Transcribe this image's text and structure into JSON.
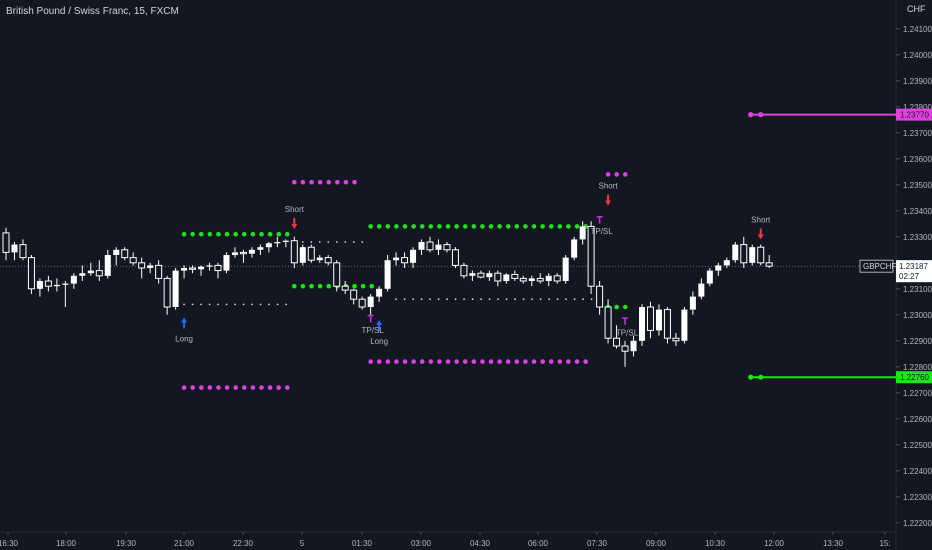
{
  "header": {
    "title": "British Pound / Swiss Franc, 15, FXCM",
    "currency": "CHF"
  },
  "colors": {
    "background": "#131722",
    "candle": "#ffffff",
    "green_level": "#19e619",
    "magenta_level": "#e040e0",
    "long_arrow": "#2962ff",
    "short_arrow": "#f23645",
    "tpsl": "#c030e0",
    "white_dots": "#d1d4dc"
  },
  "chart_data": {
    "type": "candlestick",
    "symbol": "GBPCHF",
    "interval": "15",
    "x_ticks": [
      "16:30",
      "18:00",
      "19:30",
      "21:00",
      "22:30",
      "5",
      "01:30",
      "03:00",
      "04:30",
      "06:00",
      "07:30",
      "09:00",
      "10:30",
      "12:00",
      "13:30",
      "15:"
    ],
    "y_ticks": [
      "1.24100",
      "1.24000",
      "1.23900",
      "1.23800",
      "1.23700",
      "1.23600",
      "1.23500",
      "1.23400",
      "1.23300",
      "1.23200",
      "1.23100",
      "1.23000",
      "1.22900",
      "1.22800",
      "1.22700",
      "1.22600",
      "1.22500",
      "1.22400",
      "1.22300",
      "1.22200"
    ],
    "ylim": [
      1.2218,
      1.2418
    ],
    "candles": [
      {
        "o": 1.23315,
        "h": 1.23335,
        "l": 1.2321,
        "c": 1.2324
      },
      {
        "o": 1.2324,
        "h": 1.2328,
        "l": 1.2321,
        "c": 1.2327
      },
      {
        "o": 1.2327,
        "h": 1.2329,
        "l": 1.2321,
        "c": 1.2322
      },
      {
        "o": 1.2322,
        "h": 1.2323,
        "l": 1.2308,
        "c": 1.231
      },
      {
        "o": 1.231,
        "h": 1.2314,
        "l": 1.2307,
        "c": 1.2313
      },
      {
        "o": 1.2313,
        "h": 1.2315,
        "l": 1.2309,
        "c": 1.2311
      },
      {
        "o": 1.2311,
        "h": 1.2314,
        "l": 1.2309,
        "c": 1.23115
      },
      {
        "o": 1.23115,
        "h": 1.2313,
        "l": 1.2303,
        "c": 1.2312
      },
      {
        "o": 1.2312,
        "h": 1.2316,
        "l": 1.231,
        "c": 1.2315
      },
      {
        "o": 1.2315,
        "h": 1.2319,
        "l": 1.2313,
        "c": 1.2316
      },
      {
        "o": 1.2316,
        "h": 1.232,
        "l": 1.2315,
        "c": 1.2317
      },
      {
        "o": 1.2317,
        "h": 1.2321,
        "l": 1.2313,
        "c": 1.2315
      },
      {
        "o": 1.2315,
        "h": 1.2325,
        "l": 1.2314,
        "c": 1.2323
      },
      {
        "o": 1.2323,
        "h": 1.2326,
        "l": 1.2319,
        "c": 1.2325
      },
      {
        "o": 1.2325,
        "h": 1.2326,
        "l": 1.2321,
        "c": 1.2322
      },
      {
        "o": 1.2322,
        "h": 1.2324,
        "l": 1.2319,
        "c": 1.232
      },
      {
        "o": 1.232,
        "h": 1.2322,
        "l": 1.2314,
        "c": 1.2318
      },
      {
        "o": 1.2318,
        "h": 1.232,
        "l": 1.2316,
        "c": 1.2319
      },
      {
        "o": 1.2319,
        "h": 1.2321,
        "l": 1.2312,
        "c": 1.2314
      },
      {
        "o": 1.2314,
        "h": 1.2315,
        "l": 1.23,
        "c": 1.2303
      },
      {
        "o": 1.2303,
        "h": 1.2318,
        "l": 1.2302,
        "c": 1.2317
      },
      {
        "o": 1.2317,
        "h": 1.2319,
        "l": 1.2314,
        "c": 1.2318
      },
      {
        "o": 1.2318,
        "h": 1.2319,
        "l": 1.2316,
        "c": 1.23175
      },
      {
        "o": 1.23175,
        "h": 1.2319,
        "l": 1.2315,
        "c": 1.23185
      },
      {
        "o": 1.23185,
        "h": 1.232,
        "l": 1.2317,
        "c": 1.2319
      },
      {
        "o": 1.2319,
        "h": 1.232,
        "l": 1.2314,
        "c": 1.2317
      },
      {
        "o": 1.2317,
        "h": 1.2324,
        "l": 1.2316,
        "c": 1.2323
      },
      {
        "o": 1.2323,
        "h": 1.2326,
        "l": 1.2322,
        "c": 1.2324
      },
      {
        "o": 1.2324,
        "h": 1.2325,
        "l": 1.232,
        "c": 1.23235
      },
      {
        "o": 1.23235,
        "h": 1.2326,
        "l": 1.2322,
        "c": 1.2325
      },
      {
        "o": 1.2325,
        "h": 1.2327,
        "l": 1.2323,
        "c": 1.2326
      },
      {
        "o": 1.2326,
        "h": 1.2328,
        "l": 1.2324,
        "c": 1.23275
      },
      {
        "o": 1.23275,
        "h": 1.233,
        "l": 1.2326,
        "c": 1.2328
      },
      {
        "o": 1.2328,
        "h": 1.2329,
        "l": 1.2326,
        "c": 1.23285
      },
      {
        "o": 1.23285,
        "h": 1.233,
        "l": 1.2318,
        "c": 1.232
      },
      {
        "o": 1.232,
        "h": 1.2327,
        "l": 1.2319,
        "c": 1.2326
      },
      {
        "o": 1.2326,
        "h": 1.2327,
        "l": 1.232,
        "c": 1.2321
      },
      {
        "o": 1.2321,
        "h": 1.2323,
        "l": 1.232,
        "c": 1.2322
      },
      {
        "o": 1.2322,
        "h": 1.2323,
        "l": 1.2319,
        "c": 1.232
      },
      {
        "o": 1.232,
        "h": 1.2321,
        "l": 1.2309,
        "c": 1.2311
      },
      {
        "o": 1.2311,
        "h": 1.2313,
        "l": 1.2308,
        "c": 1.23095
      },
      {
        "o": 1.23095,
        "h": 1.231,
        "l": 1.2304,
        "c": 1.2306
      },
      {
        "o": 1.2306,
        "h": 1.2307,
        "l": 1.2302,
        "c": 1.2303
      },
      {
        "o": 1.2303,
        "h": 1.2308,
        "l": 1.2298,
        "c": 1.2307
      },
      {
        "o": 1.2307,
        "h": 1.2311,
        "l": 1.2305,
        "c": 1.231
      },
      {
        "o": 1.231,
        "h": 1.2323,
        "l": 1.2309,
        "c": 1.2321
      },
      {
        "o": 1.2321,
        "h": 1.2324,
        "l": 1.2319,
        "c": 1.2322
      },
      {
        "o": 1.2322,
        "h": 1.2324,
        "l": 1.2318,
        "c": 1.232
      },
      {
        "o": 1.232,
        "h": 1.2326,
        "l": 1.2318,
        "c": 1.2325
      },
      {
        "o": 1.2325,
        "h": 1.2329,
        "l": 1.2323,
        "c": 1.2328
      },
      {
        "o": 1.2328,
        "h": 1.233,
        "l": 1.2324,
        "c": 1.2325
      },
      {
        "o": 1.2325,
        "h": 1.2329,
        "l": 1.2323,
        "c": 1.2327
      },
      {
        "o": 1.2327,
        "h": 1.2328,
        "l": 1.2324,
        "c": 1.2325
      },
      {
        "o": 1.2325,
        "h": 1.2326,
        "l": 1.2318,
        "c": 1.2319
      },
      {
        "o": 1.2319,
        "h": 1.232,
        "l": 1.2314,
        "c": 1.2315
      },
      {
        "o": 1.2315,
        "h": 1.2317,
        "l": 1.2313,
        "c": 1.2316
      },
      {
        "o": 1.2316,
        "h": 1.2317,
        "l": 1.2314,
        "c": 1.23145
      },
      {
        "o": 1.23145,
        "h": 1.2317,
        "l": 1.2313,
        "c": 1.2316
      },
      {
        "o": 1.2316,
        "h": 1.2317,
        "l": 1.2311,
        "c": 1.2313
      },
      {
        "o": 1.2313,
        "h": 1.2316,
        "l": 1.2312,
        "c": 1.23155
      },
      {
        "o": 1.23155,
        "h": 1.2317,
        "l": 1.2313,
        "c": 1.2314
      },
      {
        "o": 1.2314,
        "h": 1.2315,
        "l": 1.2312,
        "c": 1.2313
      },
      {
        "o": 1.2313,
        "h": 1.2315,
        "l": 1.2311,
        "c": 1.2314
      },
      {
        "o": 1.2314,
        "h": 1.2316,
        "l": 1.2312,
        "c": 1.2313
      },
      {
        "o": 1.2313,
        "h": 1.2316,
        "l": 1.2311,
        "c": 1.2315
      },
      {
        "o": 1.2315,
        "h": 1.2316,
        "l": 1.2312,
        "c": 1.2313
      },
      {
        "o": 1.2313,
        "h": 1.2323,
        "l": 1.2312,
        "c": 1.2322
      },
      {
        "o": 1.2322,
        "h": 1.233,
        "l": 1.2321,
        "c": 1.2329
      },
      {
        "o": 1.2329,
        "h": 1.2336,
        "l": 1.2327,
        "c": 1.2334
      },
      {
        "o": 1.2334,
        "h": 1.2336,
        "l": 1.2308,
        "c": 1.2311
      },
      {
        "o": 1.2311,
        "h": 1.2313,
        "l": 1.23,
        "c": 1.2303
      },
      {
        "o": 1.2303,
        "h": 1.2306,
        "l": 1.2289,
        "c": 1.2291
      },
      {
        "o": 1.2291,
        "h": 1.2296,
        "l": 1.2287,
        "c": 1.2288
      },
      {
        "o": 1.2288,
        "h": 1.229,
        "l": 1.228,
        "c": 1.2286
      },
      {
        "o": 1.2286,
        "h": 1.2292,
        "l": 1.2284,
        "c": 1.229
      },
      {
        "o": 1.229,
        "h": 1.2304,
        "l": 1.2288,
        "c": 1.2303
      },
      {
        "o": 1.2303,
        "h": 1.2305,
        "l": 1.2291,
        "c": 1.2294
      },
      {
        "o": 1.2294,
        "h": 1.2304,
        "l": 1.2292,
        "c": 1.2302
      },
      {
        "o": 1.2302,
        "h": 1.2303,
        "l": 1.2289,
        "c": 1.2291
      },
      {
        "o": 1.2291,
        "h": 1.2293,
        "l": 1.2288,
        "c": 1.229
      },
      {
        "o": 1.229,
        "h": 1.2303,
        "l": 1.2289,
        "c": 1.2302
      },
      {
        "o": 1.2302,
        "h": 1.2309,
        "l": 1.23,
        "c": 1.2307
      },
      {
        "o": 1.2307,
        "h": 1.2314,
        "l": 1.2306,
        "c": 1.2312
      },
      {
        "o": 1.2312,
        "h": 1.2318,
        "l": 1.2311,
        "c": 1.2317
      },
      {
        "o": 1.2317,
        "h": 1.232,
        "l": 1.2315,
        "c": 1.2319
      },
      {
        "o": 1.2319,
        "h": 1.2322,
        "l": 1.2318,
        "c": 1.2321
      },
      {
        "o": 1.2321,
        "h": 1.2328,
        "l": 1.232,
        "c": 1.2327
      },
      {
        "o": 1.2327,
        "h": 1.233,
        "l": 1.2318,
        "c": 1.232
      },
      {
        "o": 1.232,
        "h": 1.2327,
        "l": 1.2319,
        "c": 1.2326
      },
      {
        "o": 1.2326,
        "h": 1.2327,
        "l": 1.2319,
        "c": 1.232
      },
      {
        "o": 1.232,
        "h": 1.2323,
        "l": 1.2318,
        "c": 1.23187
      }
    ],
    "dotted_levels": [
      {
        "color": "green",
        "price": 1.2334,
        "from": 43,
        "to": 69
      },
      {
        "color": "green",
        "price": 1.2331,
        "from": 21,
        "to": 34
      },
      {
        "color": "green",
        "price": 1.2311,
        "from": 34,
        "to": 44
      },
      {
        "color": "green",
        "price": 1.2303,
        "from": 71,
        "to": 74
      },
      {
        "color": "magenta",
        "price": 1.2351,
        "from": 34,
        "to": 42
      },
      {
        "color": "magenta",
        "price": 1.2354,
        "from": 71,
        "to": 74
      },
      {
        "color": "magenta",
        "price": 1.2282,
        "from": 43,
        "to": 69
      },
      {
        "color": "magenta",
        "price": 1.2272,
        "from": 21,
        "to": 34
      },
      {
        "color": "white",
        "price": 1.2304,
        "from": 21,
        "to": 34
      },
      {
        "color": "white",
        "price": 1.2328,
        "from": 35,
        "to": 43
      },
      {
        "color": "white",
        "price": 1.2306,
        "from": 46,
        "to": 70
      }
    ],
    "extended_lines": [
      {
        "color": "magenta",
        "price": 1.2377,
        "from": 89
      },
      {
        "color": "green",
        "price": 1.2276,
        "from": 89
      }
    ],
    "signals": [
      {
        "type": "Long",
        "bar": 21,
        "price": 1.2299,
        "label": "Long"
      },
      {
        "type": "Short",
        "bar": 34,
        "price": 1.2333,
        "label": "Short"
      },
      {
        "type": "Long",
        "bar": 44,
        "price": 1.2298,
        "label": "Long"
      },
      {
        "type": "TPSL",
        "bar": 43,
        "price": 1.23,
        "label": "TP/SL"
      },
      {
        "type": "TPSL",
        "bar": 70,
        "price": 1.2338,
        "label": "TP/SL"
      },
      {
        "type": "Short",
        "bar": 71,
        "price": 1.2342,
        "label": "Short"
      },
      {
        "type": "TPSL",
        "bar": 73,
        "price": 1.2299,
        "label": "TP/SL"
      },
      {
        "type": "Short",
        "bar": 89,
        "price": 1.2329,
        "label": "Short"
      }
    ],
    "current_price": {
      "price": 1.23187,
      "label": "1.23187",
      "countdown": "02:27",
      "symbol": "GBPCHF"
    },
    "price_tags": [
      {
        "price": 1.2377,
        "label": "1.23770",
        "color": "#e040e0"
      },
      {
        "price": 1.2276,
        "label": "1.22760",
        "color": "#19e619"
      }
    ]
  }
}
